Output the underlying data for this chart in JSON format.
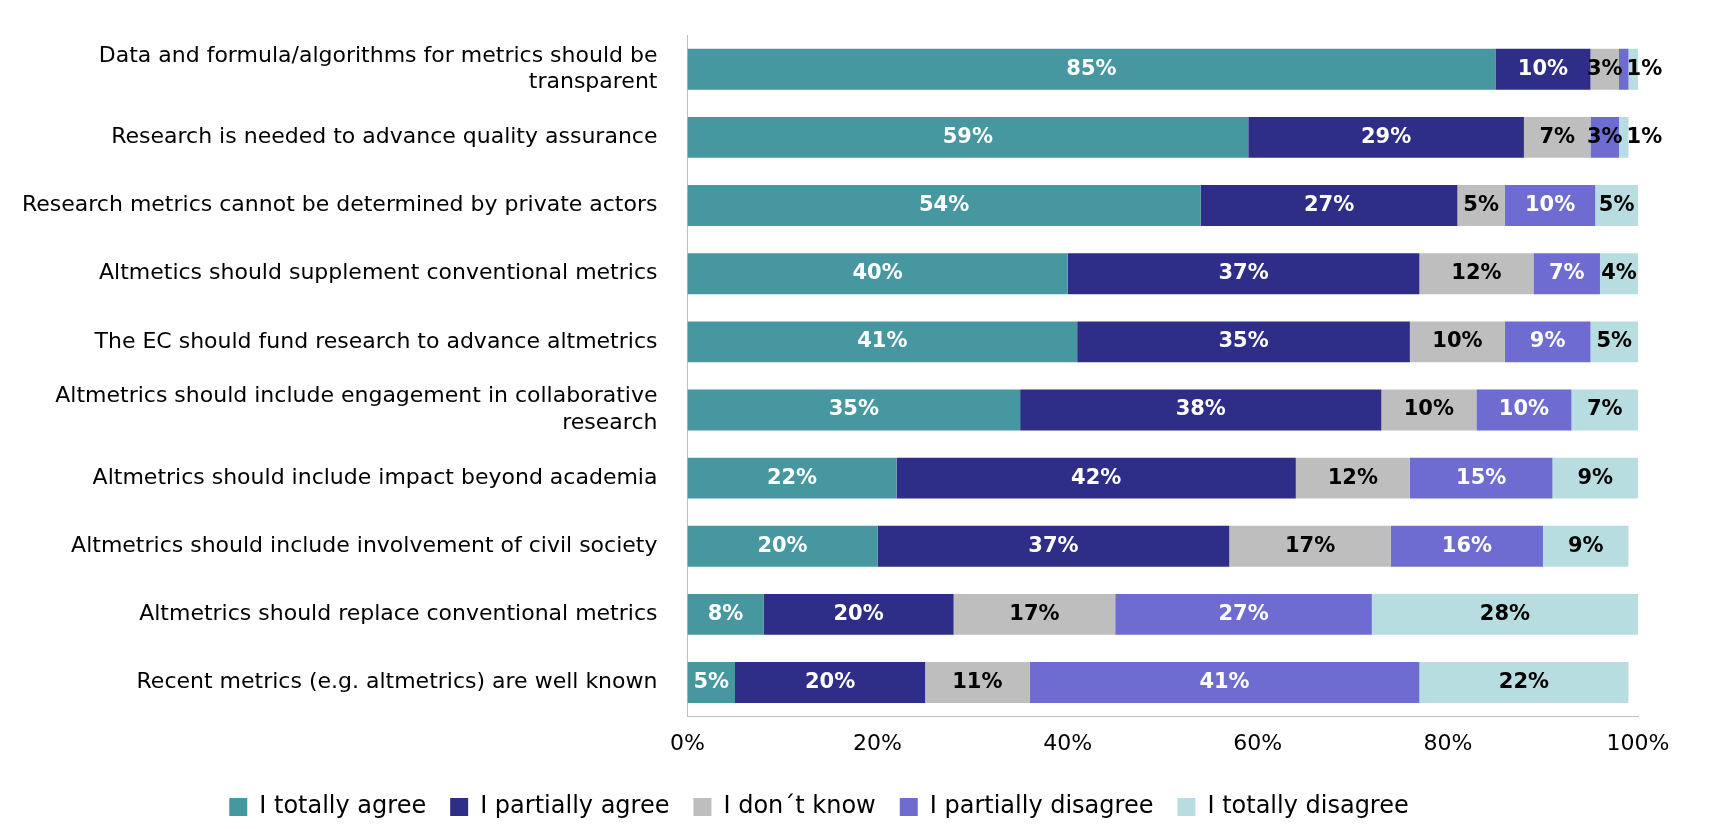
{
  "chart_data": {
    "type": "bar",
    "orientation": "horizontal",
    "stacked": true,
    "grid": false,
    "legend": "bottom",
    "categories": [
      "Data and formula/algorithms for metrics should be transparent",
      "Research is needed to advance quality assurance",
      "Research metrics cannot be determined by private actors",
      "Altmetics should supplement conventional metrics",
      "The EC should fund research to advance altmetrics",
      "Altmetrics should include engagement in collaborative research",
      "Altmetrics should include impact beyond academia",
      "Altmetrics should include involvement of civil society",
      "Altmetrics should replace conventional metrics",
      "Recent metrics (e.g. altmetrics) are well known"
    ],
    "xlim": [
      0,
      100
    ],
    "xticks": [
      {
        "value": 0,
        "label": "0%"
      },
      {
        "value": 20,
        "label": "20%"
      },
      {
        "value": 40,
        "label": "40%"
      },
      {
        "value": 60,
        "label": "60%"
      },
      {
        "value": 80,
        "label": "80%"
      },
      {
        "value": 100,
        "label": "100%"
      }
    ],
    "series": [
      {
        "name": "I totally agree",
        "color": "#46979f",
        "values": [
          85,
          59,
          54,
          40,
          41,
          35,
          22,
          20,
          8,
          5
        ],
        "value_labels": [
          "85%",
          "59%",
          "54%",
          "40%",
          "41%",
          "35%",
          "22%",
          "20%",
          "8%",
          "5%"
        ]
      },
      {
        "name": "I partially agree",
        "color": "#2e2d88",
        "values": [
          10,
          29,
          27,
          37,
          35,
          38,
          42,
          37,
          20,
          20
        ],
        "value_labels": [
          "10%",
          "29%",
          "27%",
          "37%",
          "35%",
          "38%",
          "42%",
          "37%",
          "20%",
          "20%"
        ]
      },
      {
        "name": "I don´t know",
        "color": "#bebebe",
        "values": [
          3,
          7,
          5,
          12,
          10,
          10,
          12,
          17,
          17,
          11
        ],
        "value_labels": [
          "3%",
          "7%",
          "5%",
          "12%",
          "10%",
          "10%",
          "12%",
          "17%",
          "17%",
          "11%"
        ]
      },
      {
        "name": "I partially disagree",
        "color": "#6f6cd1",
        "values": [
          1,
          3,
          9.5,
          7,
          9,
          10,
          15,
          16,
          27,
          41
        ],
        "value_labels": [
          "1%",
          "3%",
          "10%",
          "7%",
          "9%",
          "10%",
          "15%",
          "16%",
          "27%",
          "41%"
        ]
      },
      {
        "name": "I totally disagree",
        "color": "#b7dde0",
        "values": [
          1,
          1,
          4.5,
          4,
          5,
          7,
          9,
          9,
          28,
          22
        ],
        "value_labels": [
          null,
          "1%",
          "5%",
          "4%",
          "5%",
          "7%",
          "9%",
          "9%",
          "28%",
          "22%"
        ]
      }
    ]
  }
}
